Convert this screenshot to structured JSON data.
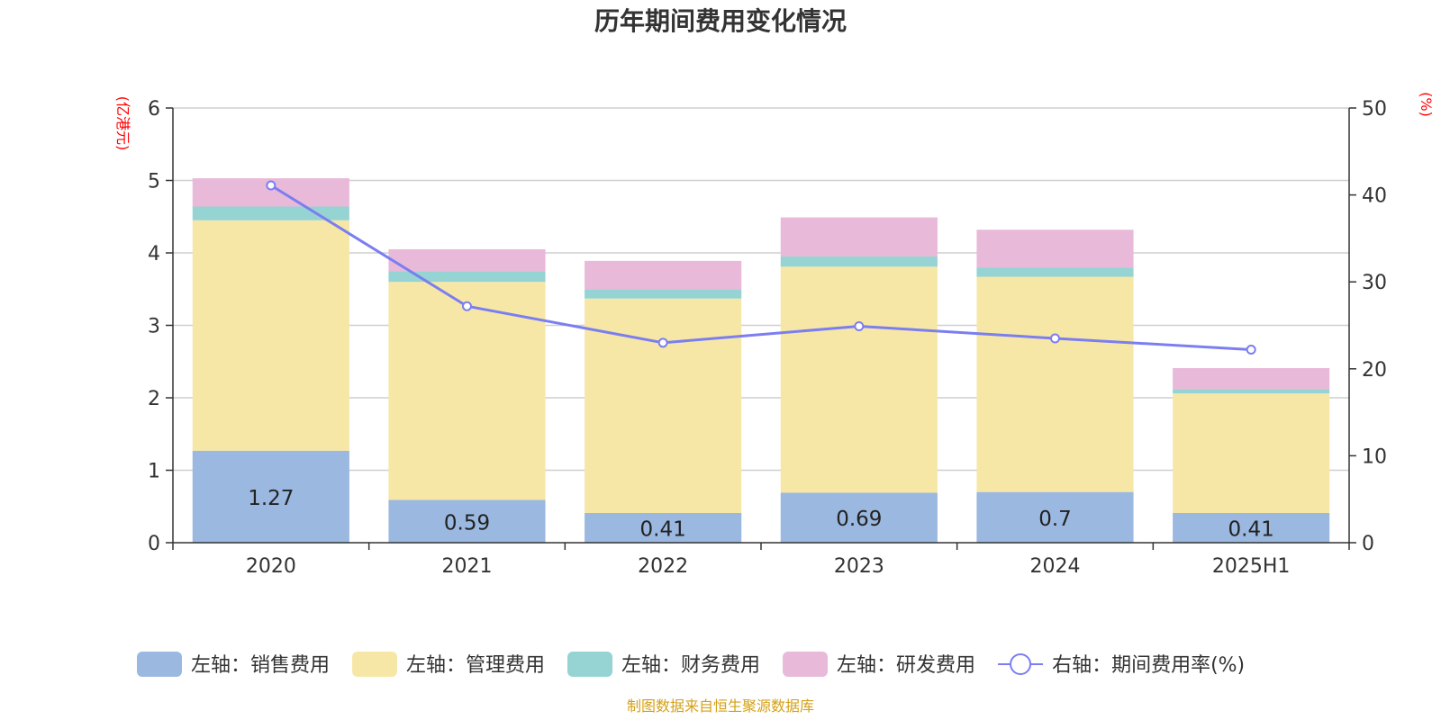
{
  "chart_data": {
    "type": "bar",
    "stacked": true,
    "title": "历年期间费用变化情况",
    "categories": [
      "2020",
      "2021",
      "2022",
      "2023",
      "2024",
      "2025H1"
    ],
    "left_axis": {
      "unit": "(亿港元)",
      "ylim": [
        0,
        6
      ],
      "ticks": [
        0,
        1,
        2,
        3,
        4,
        5,
        6
      ]
    },
    "right_axis": {
      "unit": "(%)",
      "ylim": [
        0,
        50
      ],
      "ticks": [
        0,
        10,
        20,
        30,
        40,
        50
      ]
    },
    "series": [
      {
        "name": "左轴：销售费用",
        "type": "bar",
        "axis": "left",
        "color": "#9bb8e0",
        "values": [
          1.27,
          0.59,
          0.41,
          0.69,
          0.7,
          0.41
        ],
        "show_labels": true
      },
      {
        "name": "左轴：管理费用",
        "type": "bar",
        "axis": "left",
        "color": "#f7e7a6",
        "values": [
          3.18,
          3.01,
          2.96,
          3.12,
          2.97,
          1.65
        ]
      },
      {
        "name": "左轴：财务费用",
        "type": "bar",
        "axis": "left",
        "color": "#96d3d3",
        "values": [
          0.19,
          0.15,
          0.13,
          0.14,
          0.13,
          0.06
        ]
      },
      {
        "name": "左轴：研发费用",
        "type": "bar",
        "axis": "left",
        "color": "#e8b9d9",
        "values": [
          0.39,
          0.3,
          0.39,
          0.54,
          0.52,
          0.29
        ]
      },
      {
        "name": "右轴：期间费用率(%)",
        "type": "line",
        "axis": "right",
        "color": "#7b7ef0",
        "values": [
          41.1,
          27.2,
          23.0,
          24.9,
          23.5,
          22.2
        ]
      }
    ],
    "grid": true,
    "legend_position": "bottom",
    "source": "制图数据来自恒生聚源数据库",
    "source_color": "#d4a017"
  }
}
